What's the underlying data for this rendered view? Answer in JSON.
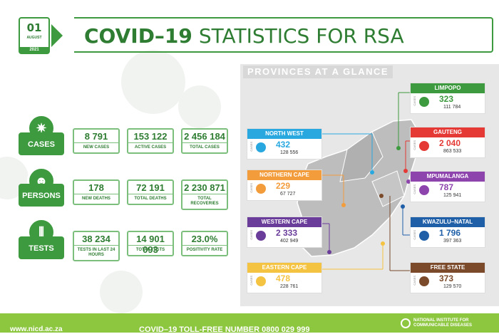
{
  "header": {
    "date_day": "01",
    "date_month": "AUGUST",
    "date_year": "2021",
    "title_bold": "COVID–19",
    "title_rest": "STATISTICS FOR RSA"
  },
  "stats": {
    "cases": {
      "label": "CASES",
      "items": [
        {
          "value": "8 791",
          "label": "NEW CASES"
        },
        {
          "value": "153 122",
          "label": "ACTIVE CASES"
        },
        {
          "value": "2 456 184",
          "label": "TOTAL CASES"
        }
      ]
    },
    "persons": {
      "label": "PERSONS",
      "items": [
        {
          "value": "178",
          "label": "NEW DEATHS"
        },
        {
          "value": "72 191",
          "label": "TOTAL DEATHS"
        },
        {
          "value": "2 230 871",
          "label": "TOTAL RECOVERIES"
        }
      ]
    },
    "tests": {
      "label": "TESTS",
      "items": [
        {
          "value": "38 234",
          "label": "TESTS IN LAST 24 HOURS"
        },
        {
          "value": "14 901 093",
          "label": "TOTAL TESTS"
        },
        {
          "value": "23.0%",
          "label": "POSITIVITY RATE"
        }
      ]
    }
  },
  "provinces": {
    "title": "PROVINCES AT A GLANCE",
    "side_label": "CASES",
    "list": [
      {
        "name": "LIMPOPO",
        "cases": "323",
        "deaths": "111 784",
        "color": "#3d9a3f"
      },
      {
        "name": "NORTH WEST",
        "cases": "432",
        "deaths": "128 556",
        "color": "#29a8e0"
      },
      {
        "name": "GAUTENG",
        "cases": "2 040",
        "deaths": "863 533",
        "color": "#e53935"
      },
      {
        "name": "NORTHERN CAPE",
        "cases": "229",
        "deaths": "67 727",
        "color": "#f39c3c"
      },
      {
        "name": "MPUMALANGA",
        "cases": "787",
        "deaths": "125 941",
        "color": "#8e44ad"
      },
      {
        "name": "WESTERN CAPE",
        "cases": "2 333",
        "deaths": "402 949",
        "color": "#6a3d9a"
      },
      {
        "name": "KWAZULU–NATAL",
        "cases": "1 796",
        "deaths": "397 363",
        "color": "#1f5fa8"
      },
      {
        "name": "EASTERN CAPE",
        "cases": "478",
        "deaths": "228 761",
        "color": "#f5c342"
      },
      {
        "name": "FREE STATE",
        "cases": "373",
        "deaths": "129 570",
        "color": "#7a4a2a"
      }
    ]
  },
  "footer": {
    "url": "www.nicd.ac.za",
    "toll_free": "COVID–19 TOLL-FREE NUMBER 0800 029 999",
    "org": "NATIONAL INSTITUTE FOR COMMUNICABLE DISEASES"
  }
}
